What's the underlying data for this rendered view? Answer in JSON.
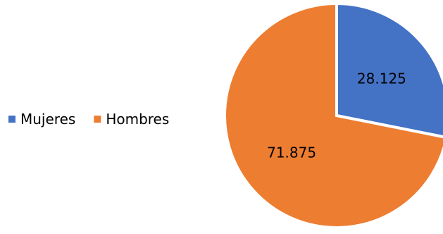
{
  "chart_data": {
    "type": "pie",
    "title": "",
    "legend_position": "left",
    "categories": [
      "Mujeres",
      "Hombres"
    ],
    "values": [
      28.125,
      71.875
    ],
    "value_labels": [
      "28.125",
      "71.875"
    ],
    "colors": [
      "#4472C4",
      "#ED7D31"
    ],
    "start_angle_deg": 0,
    "direction": "clockwise"
  }
}
